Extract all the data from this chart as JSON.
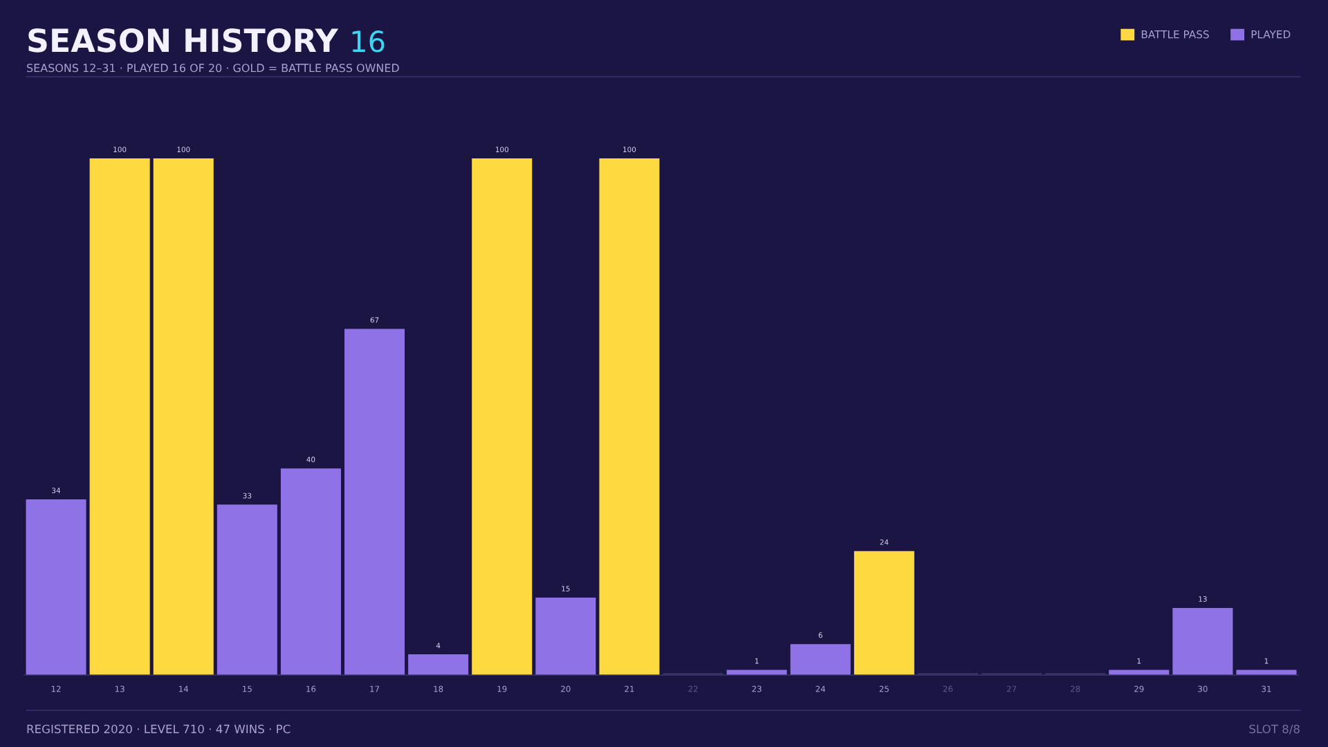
{
  "chart_data": {
    "type": "bar",
    "title": "SEASON HISTORY",
    "subtitle": "SEASONS 12–31 · PLAYED 16 OF 20 · GOLD = BATTLE PASS OWNED",
    "categories": [
      "12",
      "13",
      "14",
      "15",
      "16",
      "17",
      "18",
      "19",
      "20",
      "21",
      "22",
      "23",
      "24",
      "25",
      "26",
      "27",
      "28",
      "29",
      "30",
      "31"
    ],
    "series": [
      {
        "name": "BATTLE PASS",
        "color": "#ffd940",
        "values": [
          null,
          100,
          100,
          null,
          null,
          null,
          null,
          100,
          null,
          100,
          null,
          null,
          null,
          24,
          null,
          null,
          null,
          null,
          null,
          null
        ],
        "value_labels": [
          null,
          "100",
          "100",
          null,
          null,
          null,
          null,
          "100",
          null,
          "100",
          null,
          null,
          null,
          "24",
          null,
          null,
          null,
          null,
          null,
          null
        ]
      },
      {
        "name": "PLAYED",
        "color": "#8f72e6",
        "values": [
          34,
          null,
          null,
          33,
          40,
          67,
          4,
          null,
          15,
          null,
          null,
          1,
          6,
          null,
          null,
          null,
          null,
          1,
          13,
          1
        ],
        "value_labels": [
          "34",
          null,
          null,
          "33",
          "40",
          "67",
          "4",
          null,
          "15",
          null,
          null,
          "1",
          "6",
          null,
          null,
          null,
          null,
          "1",
          "13",
          "1"
        ]
      },
      {
        "color": "#36315e",
        "values": [
          null,
          null,
          null,
          null,
          null,
          null,
          null,
          null,
          null,
          null,
          0,
          null,
          null,
          null,
          0,
          0,
          0,
          null,
          null,
          null
        ]
      }
    ],
    "ylim": [
      0,
      100
    ],
    "tick_labels": "x",
    "legend": "top right",
    "annotations": [
      "16",
      "REGISTERED 2020 · LEVEL 710 · 47 WINS · PC",
      "SLOT 8/8"
    ]
  }
}
